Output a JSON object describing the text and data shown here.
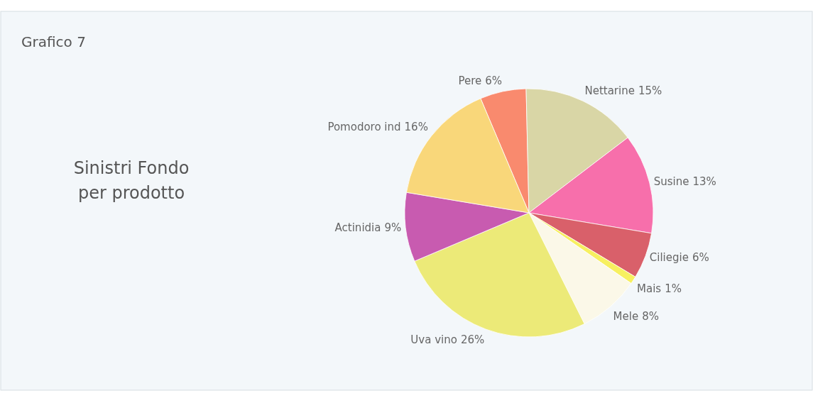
{
  "chart_data": {
    "type": "pie",
    "title": "Grafico 7",
    "subtitle": "Sinistri Fondo per prodotto",
    "categories": [
      "Pere",
      "Nettarine",
      "Susine",
      "Ciliegie",
      "Mais",
      "Mele",
      "Uva vino",
      "Actinidia",
      "Pomodoro ind"
    ],
    "values": [
      6,
      15,
      13,
      6,
      1,
      8,
      26,
      9,
      16
    ],
    "colors": [
      "#f98a6e",
      "#d9d6a6",
      "#f76fab",
      "#d9606a",
      "#f7f060",
      "#fbf8e8",
      "#ecea78",
      "#c85bb0",
      "#f9d77a"
    ],
    "value_labels": [
      "6%",
      "15%",
      "13%",
      "6%",
      "1%",
      "8%",
      "26%",
      "9%",
      "16%"
    ]
  }
}
